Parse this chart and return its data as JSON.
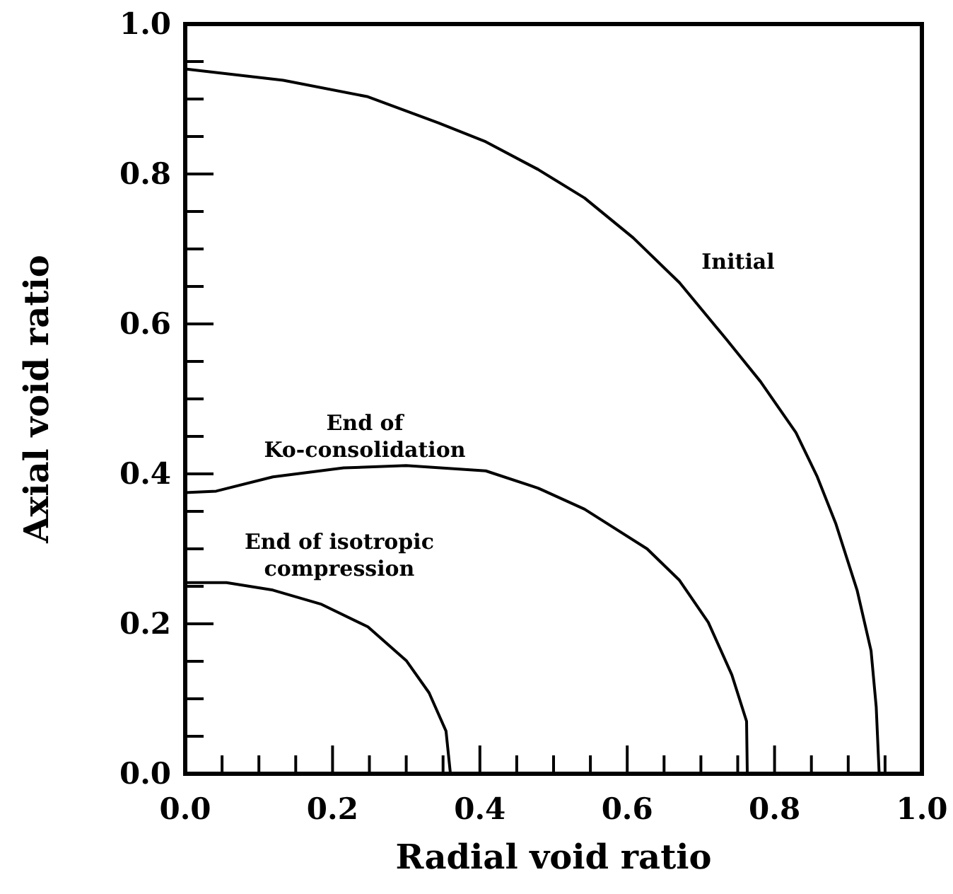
{
  "chart_data": {
    "type": "line",
    "xlabel": "Radial void ratio",
    "ylabel": "Axial void ratio",
    "xlim": [
      0,
      1
    ],
    "ylim": [
      0,
      1
    ],
    "xticks": [
      {
        "value": 0,
        "label": "0.0"
      },
      {
        "value": 0.05,
        "label": null
      },
      {
        "value": 0.1,
        "label": null
      },
      {
        "value": 0.15,
        "label": null
      },
      {
        "value": 0.2,
        "label": "0.2"
      },
      {
        "value": 0.25,
        "label": null
      },
      {
        "value": 0.3,
        "label": null
      },
      {
        "value": 0.35,
        "label": null
      },
      {
        "value": 0.4,
        "label": "0.4"
      },
      {
        "value": 0.45,
        "label": null
      },
      {
        "value": 0.5,
        "label": null
      },
      {
        "value": 0.55,
        "label": null
      },
      {
        "value": 0.6,
        "label": "0.6"
      },
      {
        "value": 0.65,
        "label": null
      },
      {
        "value": 0.7,
        "label": null
      },
      {
        "value": 0.75,
        "label": null
      },
      {
        "value": 0.8,
        "label": "0.8"
      },
      {
        "value": 0.85,
        "label": null
      },
      {
        "value": 0.9,
        "label": null
      },
      {
        "value": 0.95,
        "label": null
      },
      {
        "value": 1,
        "label": "1.0"
      }
    ],
    "yticks": [
      {
        "value": 0,
        "label": "0.0"
      },
      {
        "value": 0.05,
        "label": null
      },
      {
        "value": 0.1,
        "label": null
      },
      {
        "value": 0.15,
        "label": null
      },
      {
        "value": 0.2,
        "label": "0.2"
      },
      {
        "value": 0.25,
        "label": null
      },
      {
        "value": 0.3,
        "label": null
      },
      {
        "value": 0.35,
        "label": null
      },
      {
        "value": 0.4,
        "label": "0.4"
      },
      {
        "value": 0.45,
        "label": null
      },
      {
        "value": 0.5,
        "label": null
      },
      {
        "value": 0.55,
        "label": null
      },
      {
        "value": 0.6,
        "label": "0.6"
      },
      {
        "value": 0.65,
        "label": null
      },
      {
        "value": 0.7,
        "label": null
      },
      {
        "value": 0.75,
        "label": null
      },
      {
        "value": 0.8,
        "label": "0.8"
      },
      {
        "value": 0.85,
        "label": null
      },
      {
        "value": 0.9,
        "label": null
      },
      {
        "value": 0.95,
        "label": null
      },
      {
        "value": 1,
        "label": "1.0"
      }
    ],
    "grid": false,
    "marker": "none",
    "line_style": "solid",
    "series": [
      {
        "color": "#000000",
        "x": [
          0,
          0.133,
          0.248,
          0.344,
          0.408,
          0.479,
          0.542,
          0.608,
          0.671,
          0.735,
          0.781,
          0.829,
          0.858,
          0.883,
          0.912,
          0.931,
          0.938,
          0.942
        ],
        "values": [
          0.94,
          0.925,
          0.903,
          0.868,
          0.843,
          0.806,
          0.768,
          0.715,
          0.655,
          0.579,
          0.523,
          0.455,
          0.396,
          0.334,
          0.245,
          0.164,
          0.089,
          0
        ]
      },
      {
        "color": "#000000",
        "x": [
          0,
          0.042,
          0.119,
          0.215,
          0.3,
          0.408,
          0.479,
          0.542,
          0.627,
          0.671,
          0.71,
          0.742,
          0.762,
          0.763
        ],
        "values": [
          0.375,
          0.377,
          0.396,
          0.408,
          0.411,
          0.404,
          0.381,
          0.353,
          0.3,
          0.258,
          0.202,
          0.132,
          0.07,
          0
        ]
      },
      {
        "color": "#000000",
        "x": [
          0,
          0.056,
          0.119,
          0.185,
          0.248,
          0.3,
          0.331,
          0.354,
          0.36
        ],
        "values": [
          0.255,
          0.255,
          0.245,
          0.226,
          0.196,
          0.151,
          0.108,
          0.057,
          0
        ]
      }
    ],
    "annotations": [
      "Initial",
      "End of\nKo-consolidation",
      "End of isotropic\ncompression"
    ]
  }
}
